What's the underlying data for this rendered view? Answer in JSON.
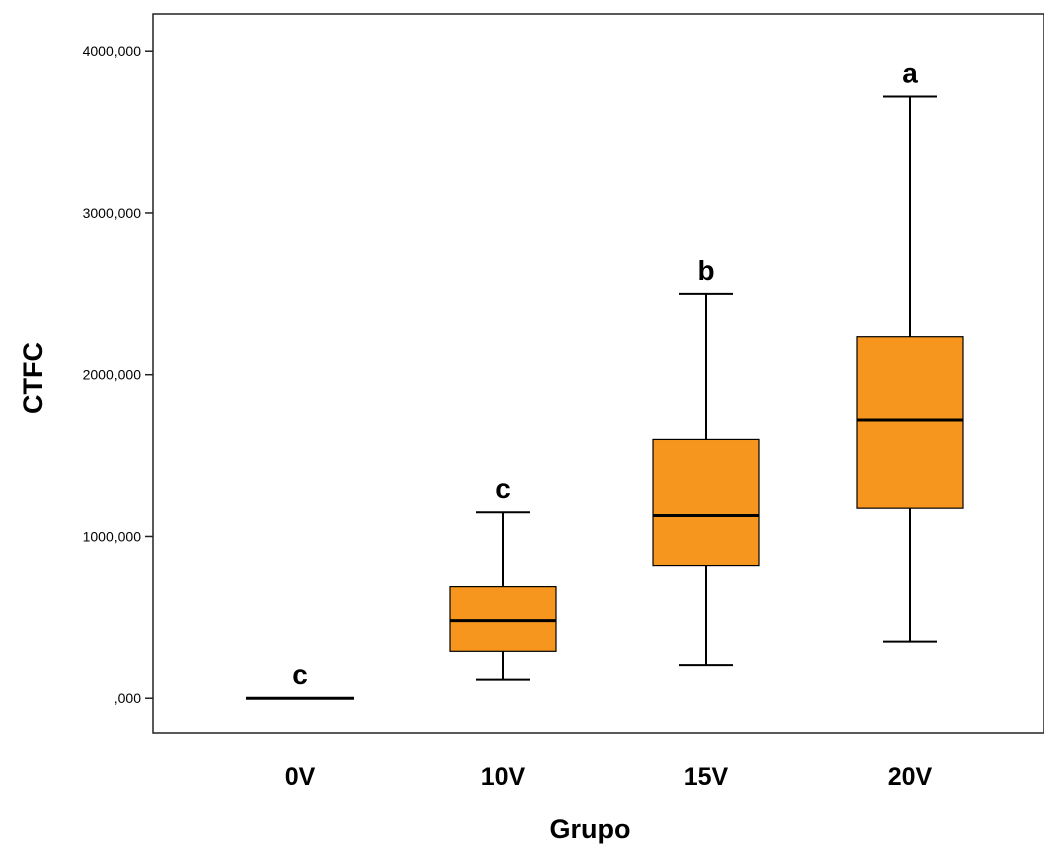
{
  "chart_data": {
    "type": "box",
    "xlabel": "Grupo",
    "ylabel": "CTFC",
    "ylim": [
      -215,
      4230
    ],
    "yticks": [
      0,
      1000,
      2000,
      3000,
      4000
    ],
    "ytick_labels": [
      ",000",
      "1000,000",
      "2000,000",
      "3000,000",
      "4000,000"
    ],
    "box_color": "#f7961e",
    "categories": [
      "0V",
      "10V",
      "15V",
      "20V"
    ],
    "boxes": [
      {
        "category": "0V",
        "min": 0,
        "q1": 0,
        "median": 0,
        "q3": 0,
        "max": 0,
        "letter": "c"
      },
      {
        "category": "10V",
        "min": 115,
        "q1": 290,
        "median": 480,
        "q3": 690,
        "max": 1150,
        "letter": "c"
      },
      {
        "category": "15V",
        "min": 205,
        "q1": 820,
        "median": 1130,
        "q3": 1600,
        "max": 2500,
        "letter": "b"
      },
      {
        "category": "20V",
        "min": 350,
        "q1": 1175,
        "median": 1720,
        "q3": 2235,
        "max": 3720,
        "letter": "a"
      }
    ]
  }
}
